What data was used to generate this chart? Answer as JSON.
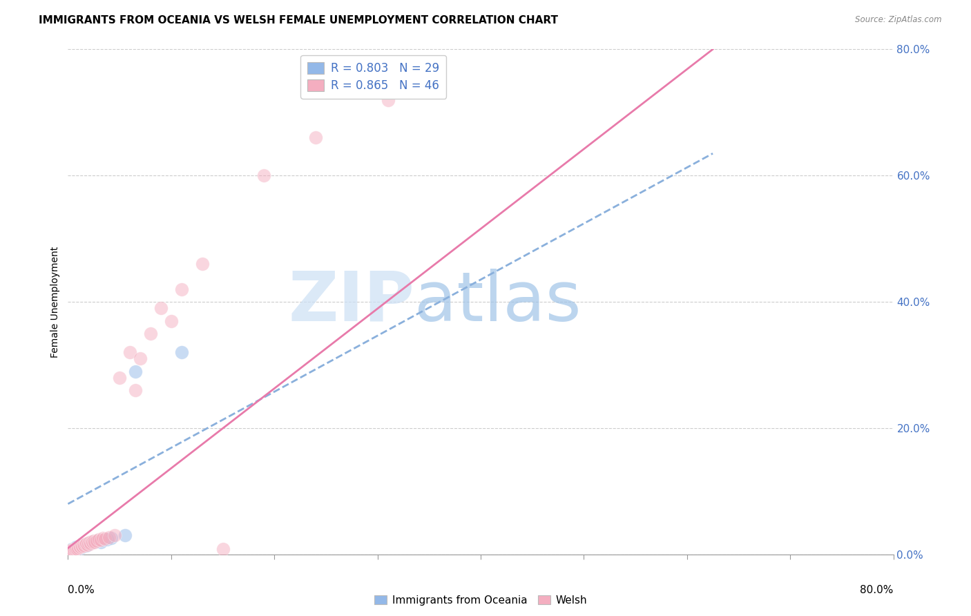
{
  "title": "IMMIGRANTS FROM OCEANIA VS WELSH FEMALE UNEMPLOYMENT CORRELATION CHART",
  "source": "Source: ZipAtlas.com",
  "ylabel": "Female Unemployment",
  "legend1_label": "R = 0.803   N = 29",
  "legend2_label": "R = 0.865   N = 46",
  "blue_color": "#93b8e8",
  "pink_color": "#f4aec0",
  "blue_line_color": "#8ab0dc",
  "pink_line_color": "#e87aaa",
  "watermark_zip": "ZIP",
  "watermark_atlas": "atlas",
  "blue_scatter": [
    [
      0.001,
      0.004
    ],
    [
      0.002,
      0.006
    ],
    [
      0.003,
      0.007
    ],
    [
      0.004,
      0.008
    ],
    [
      0.005,
      0.006
    ],
    [
      0.006,
      0.009
    ],
    [
      0.007,
      0.01
    ],
    [
      0.008,
      0.012
    ],
    [
      0.009,
      0.008
    ],
    [
      0.01,
      0.011
    ],
    [
      0.011,
      0.013
    ],
    [
      0.012,
      0.01
    ],
    [
      0.013,
      0.012
    ],
    [
      0.014,
      0.014
    ],
    [
      0.015,
      0.013
    ],
    [
      0.016,
      0.015
    ],
    [
      0.017,
      0.016
    ],
    [
      0.018,
      0.014
    ],
    [
      0.019,
      0.017
    ],
    [
      0.02,
      0.016
    ],
    [
      0.022,
      0.018
    ],
    [
      0.025,
      0.019
    ],
    [
      0.028,
      0.022
    ],
    [
      0.032,
      0.02
    ],
    [
      0.038,
      0.024
    ],
    [
      0.042,
      0.026
    ],
    [
      0.055,
      0.03
    ],
    [
      0.065,
      0.29
    ],
    [
      0.11,
      0.32
    ]
  ],
  "pink_scatter": [
    [
      0.001,
      0.004
    ],
    [
      0.002,
      0.005
    ],
    [
      0.003,
      0.006
    ],
    [
      0.004,
      0.007
    ],
    [
      0.005,
      0.006
    ],
    [
      0.006,
      0.008
    ],
    [
      0.007,
      0.009
    ],
    [
      0.008,
      0.01
    ],
    [
      0.009,
      0.009
    ],
    [
      0.01,
      0.011
    ],
    [
      0.011,
      0.013
    ],
    [
      0.012,
      0.012
    ],
    [
      0.013,
      0.014
    ],
    [
      0.014,
      0.013
    ],
    [
      0.015,
      0.015
    ],
    [
      0.016,
      0.014
    ],
    [
      0.017,
      0.016
    ],
    [
      0.018,
      0.017
    ],
    [
      0.019,
      0.015
    ],
    [
      0.02,
      0.018
    ],
    [
      0.021,
      0.019
    ],
    [
      0.022,
      0.017
    ],
    [
      0.023,
      0.021
    ],
    [
      0.024,
      0.02
    ],
    [
      0.025,
      0.022
    ],
    [
      0.026,
      0.019
    ],
    [
      0.028,
      0.022
    ],
    [
      0.03,
      0.024
    ],
    [
      0.032,
      0.023
    ],
    [
      0.034,
      0.026
    ],
    [
      0.036,
      0.025
    ],
    [
      0.04,
      0.027
    ],
    [
      0.045,
      0.03
    ],
    [
      0.05,
      0.28
    ],
    [
      0.06,
      0.32
    ],
    [
      0.065,
      0.26
    ],
    [
      0.07,
      0.31
    ],
    [
      0.08,
      0.35
    ],
    [
      0.09,
      0.39
    ],
    [
      0.1,
      0.37
    ],
    [
      0.11,
      0.42
    ],
    [
      0.13,
      0.46
    ],
    [
      0.15,
      0.008
    ],
    [
      0.19,
      0.6
    ],
    [
      0.24,
      0.66
    ],
    [
      0.31,
      0.72
    ]
  ],
  "xlim": [
    0.0,
    0.8
  ],
  "ylim": [
    0.0,
    0.8
  ],
  "blue_line": [
    0.0,
    0.08,
    0.62,
    0.62
  ],
  "pink_line_x0": 0.0,
  "pink_line_y0": 0.01,
  "pink_line_x1": 0.625,
  "pink_line_y1": 0.8,
  "blue_line_x0": 0.0,
  "blue_line_y0": 0.08,
  "blue_line_x1": 0.625,
  "blue_line_y1": 0.635,
  "ytick_vals": [
    0.0,
    0.2,
    0.4,
    0.6,
    0.8
  ],
  "ytick_labels": [
    "0.0%",
    "20.0%",
    "40.0%",
    "60.0%",
    "80.0%"
  ],
  "grid_color": "#cccccc",
  "title_fontsize": 11,
  "axis_label_fontsize": 10,
  "tick_fontsize": 10,
  "legend_fontsize": 12,
  "legend_text_color": "#4472c4",
  "bottom_legend_labels": [
    "Immigrants from Oceania",
    "Welsh"
  ]
}
